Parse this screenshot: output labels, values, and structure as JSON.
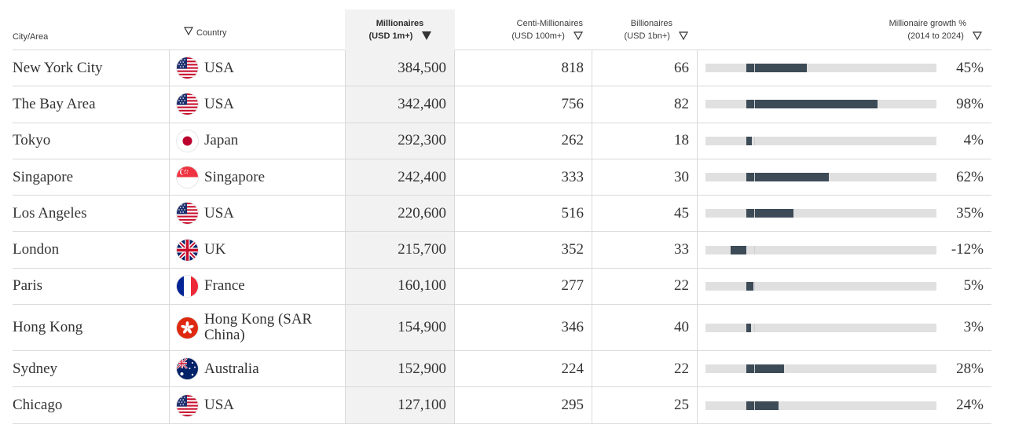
{
  "headers": {
    "city": "City/Area",
    "country": "Country",
    "millionaires_line1": "Millionaires",
    "millionaires_line2": "(USD 1m+)",
    "centi_line1": "Centi-Millionaires",
    "centi_line2": "(USD 100m+)",
    "billionaires_line1": "Billionaires",
    "billionaires_line2": "(USD 1bn+)",
    "growth_line1": "Millionaire growth %",
    "growth_line2": "(2014 to 2024)"
  },
  "rows": [
    {
      "city": "New York City",
      "country": "USA",
      "flag": "usa-flag-icon",
      "millionaires": "384,500",
      "centi": "818",
      "billionaires": "66",
      "growth_label": "45%",
      "growth": 45
    },
    {
      "city": "The Bay Area",
      "country": "USA",
      "flag": "usa-flag-icon",
      "millionaires": "342,400",
      "centi": "756",
      "billionaires": "82",
      "growth_label": "98%",
      "growth": 98
    },
    {
      "city": "Tokyo",
      "country": "Japan",
      "flag": "japan-flag-icon",
      "millionaires": "292,300",
      "centi": "262",
      "billionaires": "18",
      "growth_label": "4%",
      "growth": 4
    },
    {
      "city": "Singapore",
      "country": "Singapore",
      "flag": "singapore-flag-icon",
      "millionaires": "242,400",
      "centi": "333",
      "billionaires": "30",
      "growth_label": "62%",
      "growth": 62
    },
    {
      "city": "Los Angeles",
      "country": "USA",
      "flag": "usa-flag-icon",
      "millionaires": "220,600",
      "centi": "516",
      "billionaires": "45",
      "growth_label": "35%",
      "growth": 35
    },
    {
      "city": "London",
      "country": "UK",
      "flag": "uk-flag-icon",
      "millionaires": "215,700",
      "centi": "352",
      "billionaires": "33",
      "growth_label": "-12%",
      "growth": -12
    },
    {
      "city": "Paris",
      "country": "France",
      "flag": "france-flag-icon",
      "millionaires": "160,100",
      "centi": "277",
      "billionaires": "22",
      "growth_label": "5%",
      "growth": 5
    },
    {
      "city": "Hong Kong",
      "country": "Hong Kong (SAR China)",
      "flag": "hong-kong-flag-icon",
      "millionaires": "154,900",
      "centi": "346",
      "billionaires": "40",
      "growth_label": "3%",
      "growth": 3
    },
    {
      "city": "Sydney",
      "country": "Australia",
      "flag": "australia-flag-icon",
      "millionaires": "152,900",
      "centi": "224",
      "billionaires": "22",
      "growth_label": "28%",
      "growth": 28
    },
    {
      "city": "Chicago",
      "country": "USA",
      "flag": "usa-flag-icon",
      "millionaires": "127,100",
      "centi": "295",
      "billionaires": "25",
      "growth_label": "24%",
      "growth": 24
    }
  ],
  "colors": {
    "bar_fill": "#3d4b57",
    "bar_track": "#e0e0e0",
    "sorted_column_bg": "#f2f2f2"
  }
}
